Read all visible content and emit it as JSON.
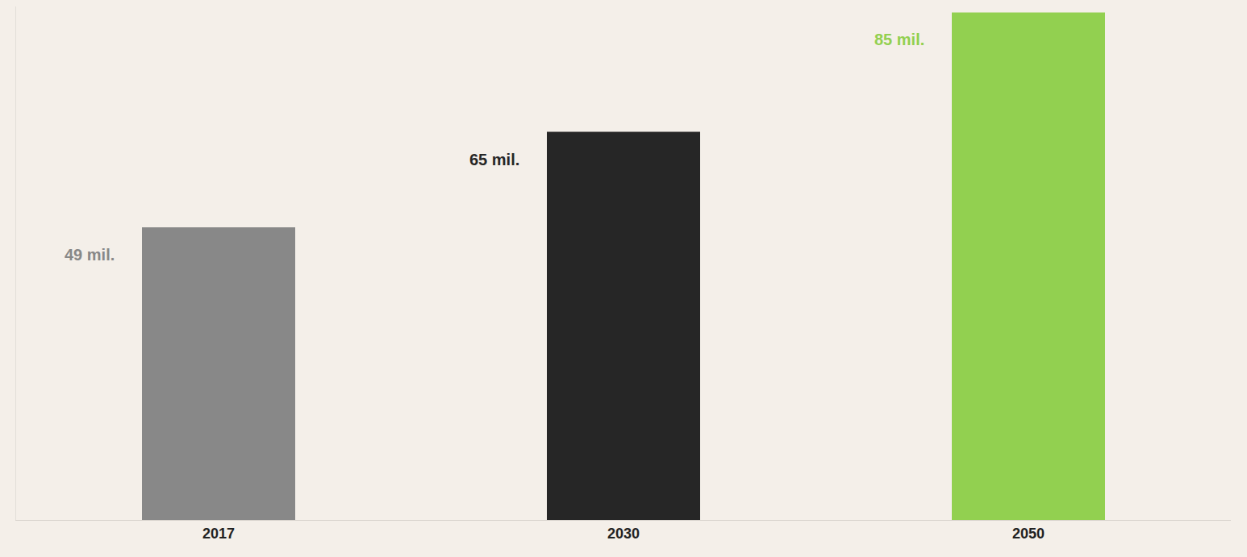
{
  "chart_data": {
    "type": "bar",
    "categories": [
      "2017",
      "2030",
      "2050"
    ],
    "values": [
      49,
      65,
      85
    ],
    "value_labels": [
      "49 mil.",
      "65 mil.",
      "85 mil."
    ],
    "colors": [
      "#888888",
      "#262626",
      "#92d050"
    ],
    "ylim": [
      0,
      86
    ],
    "yticks": [],
    "tick_labels": "x",
    "grid": false,
    "data_labels": true
  }
}
